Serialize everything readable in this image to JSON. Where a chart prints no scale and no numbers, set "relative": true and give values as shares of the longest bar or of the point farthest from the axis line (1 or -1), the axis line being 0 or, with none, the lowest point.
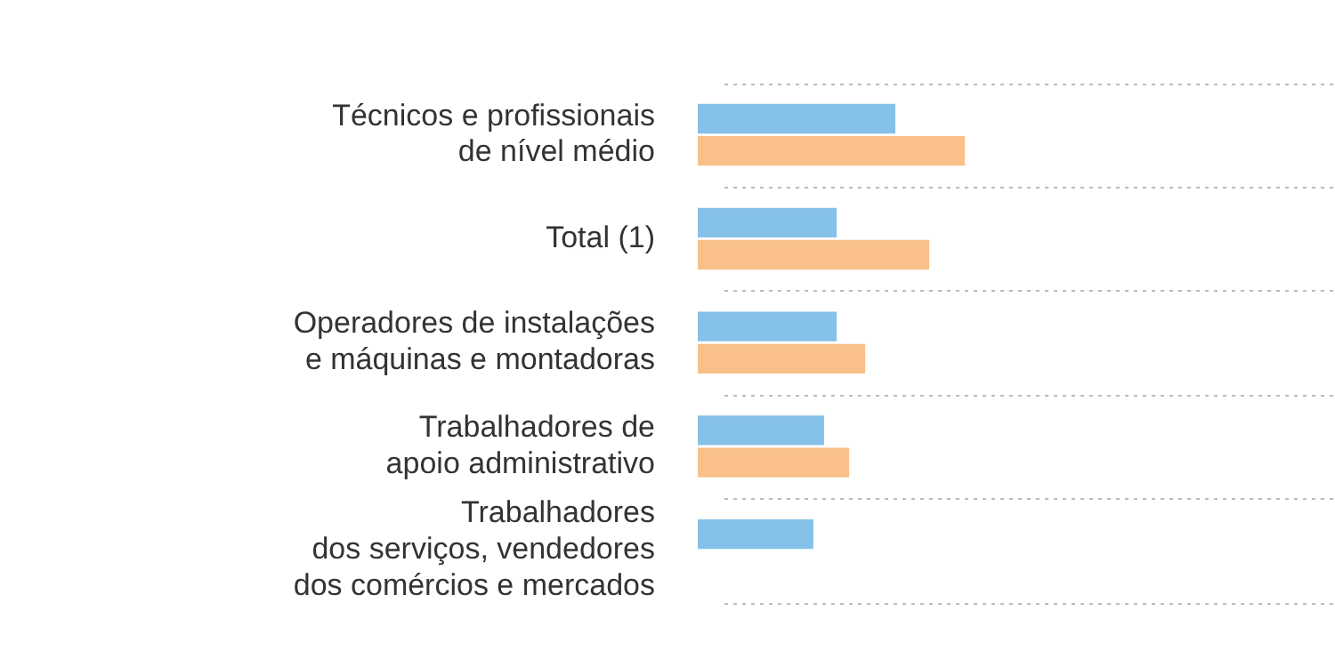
{
  "chart_data": {
    "type": "bar",
    "orientation": "horizontal",
    "relative": true,
    "grid": "y",
    "legend": false,
    "categories": [
      "Técnicos e profissionais de nível médio",
      "Total (1)",
      "Operadores de instalações e máquinas e montadoras",
      "Trabalhadores de apoio administrativo",
      "Trabalhadores dos serviços, vendedores dos comércios e mercados"
    ],
    "series": [
      {
        "color": "#85c1e9",
        "values": [
          0.74,
          0.52,
          0.52,
          0.473,
          0.433
        ]
      },
      {
        "color": "#f9c08a",
        "values": [
          1,
          0.867,
          0.627,
          0.567,
          null
        ]
      }
    ]
  }
}
